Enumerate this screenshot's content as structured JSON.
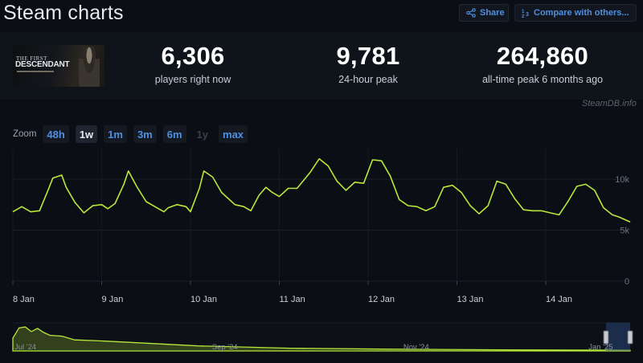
{
  "header": {
    "title": "Steam charts",
    "share_label": "Share",
    "compare_label": "Compare with others..."
  },
  "game": {
    "logo_line1": "THE FIRST",
    "logo_line2": "DESCENDANT"
  },
  "stats": {
    "current": {
      "value": "6,306",
      "label": "players right now"
    },
    "peak24": {
      "value": "9,781",
      "label": "24-hour peak"
    },
    "alltime": {
      "value": "264,860",
      "label": "all-time peak 6 months ago"
    }
  },
  "watermark": "SteamDB.info",
  "zoom": {
    "label": "Zoom",
    "options": [
      "48h",
      "1w",
      "1m",
      "3m",
      "6m",
      "1y",
      "max"
    ],
    "selected": "1w",
    "disabled": [
      "1y"
    ]
  },
  "colors": {
    "line": "#b7e83a",
    "accent": "#4f8fe0",
    "background": "#0b0e14"
  },
  "chart_data": [
    {
      "type": "line",
      "title": "",
      "xlabel": "",
      "ylabel": "",
      "x_ticks": [
        "8 Jan",
        "9 Jan",
        "10 Jan",
        "11 Jan",
        "12 Jan",
        "13 Jan",
        "14 Jan"
      ],
      "y_ticks": [
        "0",
        "5k",
        "10k"
      ],
      "ylim": [
        0,
        13000
      ],
      "x_range_days": [
        0,
        6.95
      ],
      "grid": true,
      "legend": "none",
      "series": [
        {
          "x": [
            0,
            0.1,
            0.2,
            0.3,
            0.4,
            0.45,
            0.55,
            0.6,
            0.7,
            0.8,
            0.9,
            1.0,
            1.07,
            1.15,
            1.25,
            1.3,
            1.4,
            1.5,
            1.6,
            1.7,
            1.75,
            1.85,
            1.95,
            2.0,
            2.1,
            2.15,
            2.25,
            2.35,
            2.5,
            2.6,
            2.68,
            2.77,
            2.85,
            2.92,
            3.0,
            3.1,
            3.2,
            3.35,
            3.45,
            3.55,
            3.65,
            3.75,
            3.85,
            3.95,
            4.05,
            4.15,
            4.25,
            4.35,
            4.45,
            4.55,
            4.65,
            4.75,
            4.85,
            4.95,
            5.05,
            5.15,
            5.25,
            5.35,
            5.45,
            5.55,
            5.65,
            5.75,
            5.85,
            5.95,
            6.05,
            6.15,
            6.25,
            6.35,
            6.45,
            6.55,
            6.65,
            6.75,
            6.82,
            6.95
          ],
          "y": [
            6800,
            7300,
            6800,
            6900,
            9000,
            10100,
            10400,
            9200,
            7700,
            6700,
            7400,
            7500,
            7100,
            7600,
            9500,
            10800,
            9200,
            7800,
            7300,
            6800,
            7200,
            7500,
            7300,
            6800,
            9100,
            10800,
            10200,
            8700,
            7500,
            7300,
            6900,
            8400,
            9200,
            8700,
            8300,
            9100,
            9100,
            10700,
            12000,
            11300,
            9800,
            8900,
            9700,
            9600,
            11900,
            11800,
            10300,
            8000,
            7400,
            7300,
            6900,
            7300,
            9200,
            9400,
            8700,
            7400,
            6600,
            7400,
            9800,
            9500,
            8100,
            7000,
            6900,
            6900,
            6700,
            6500,
            7800,
            9300,
            9500,
            8900,
            7200,
            6500,
            6300,
            5800
          ]
        }
      ]
    },
    {
      "type": "area",
      "title": "",
      "x_ticks": [
        "Jul '24",
        "Sep '24",
        "Nov '24",
        "Jan '25"
      ],
      "series": [
        {
          "x": [
            0,
            0.01,
            0.02,
            0.03,
            0.04,
            0.05,
            0.06,
            0.08,
            0.1,
            0.14,
            0.2,
            0.3,
            0.45,
            0.6,
            0.8,
            1.0
          ],
          "y": [
            140000,
            250000,
            260000,
            210000,
            245000,
            200000,
            170000,
            160000,
            120000,
            110000,
            90000,
            55000,
            30000,
            20000,
            12000,
            8000
          ]
        }
      ]
    }
  ]
}
